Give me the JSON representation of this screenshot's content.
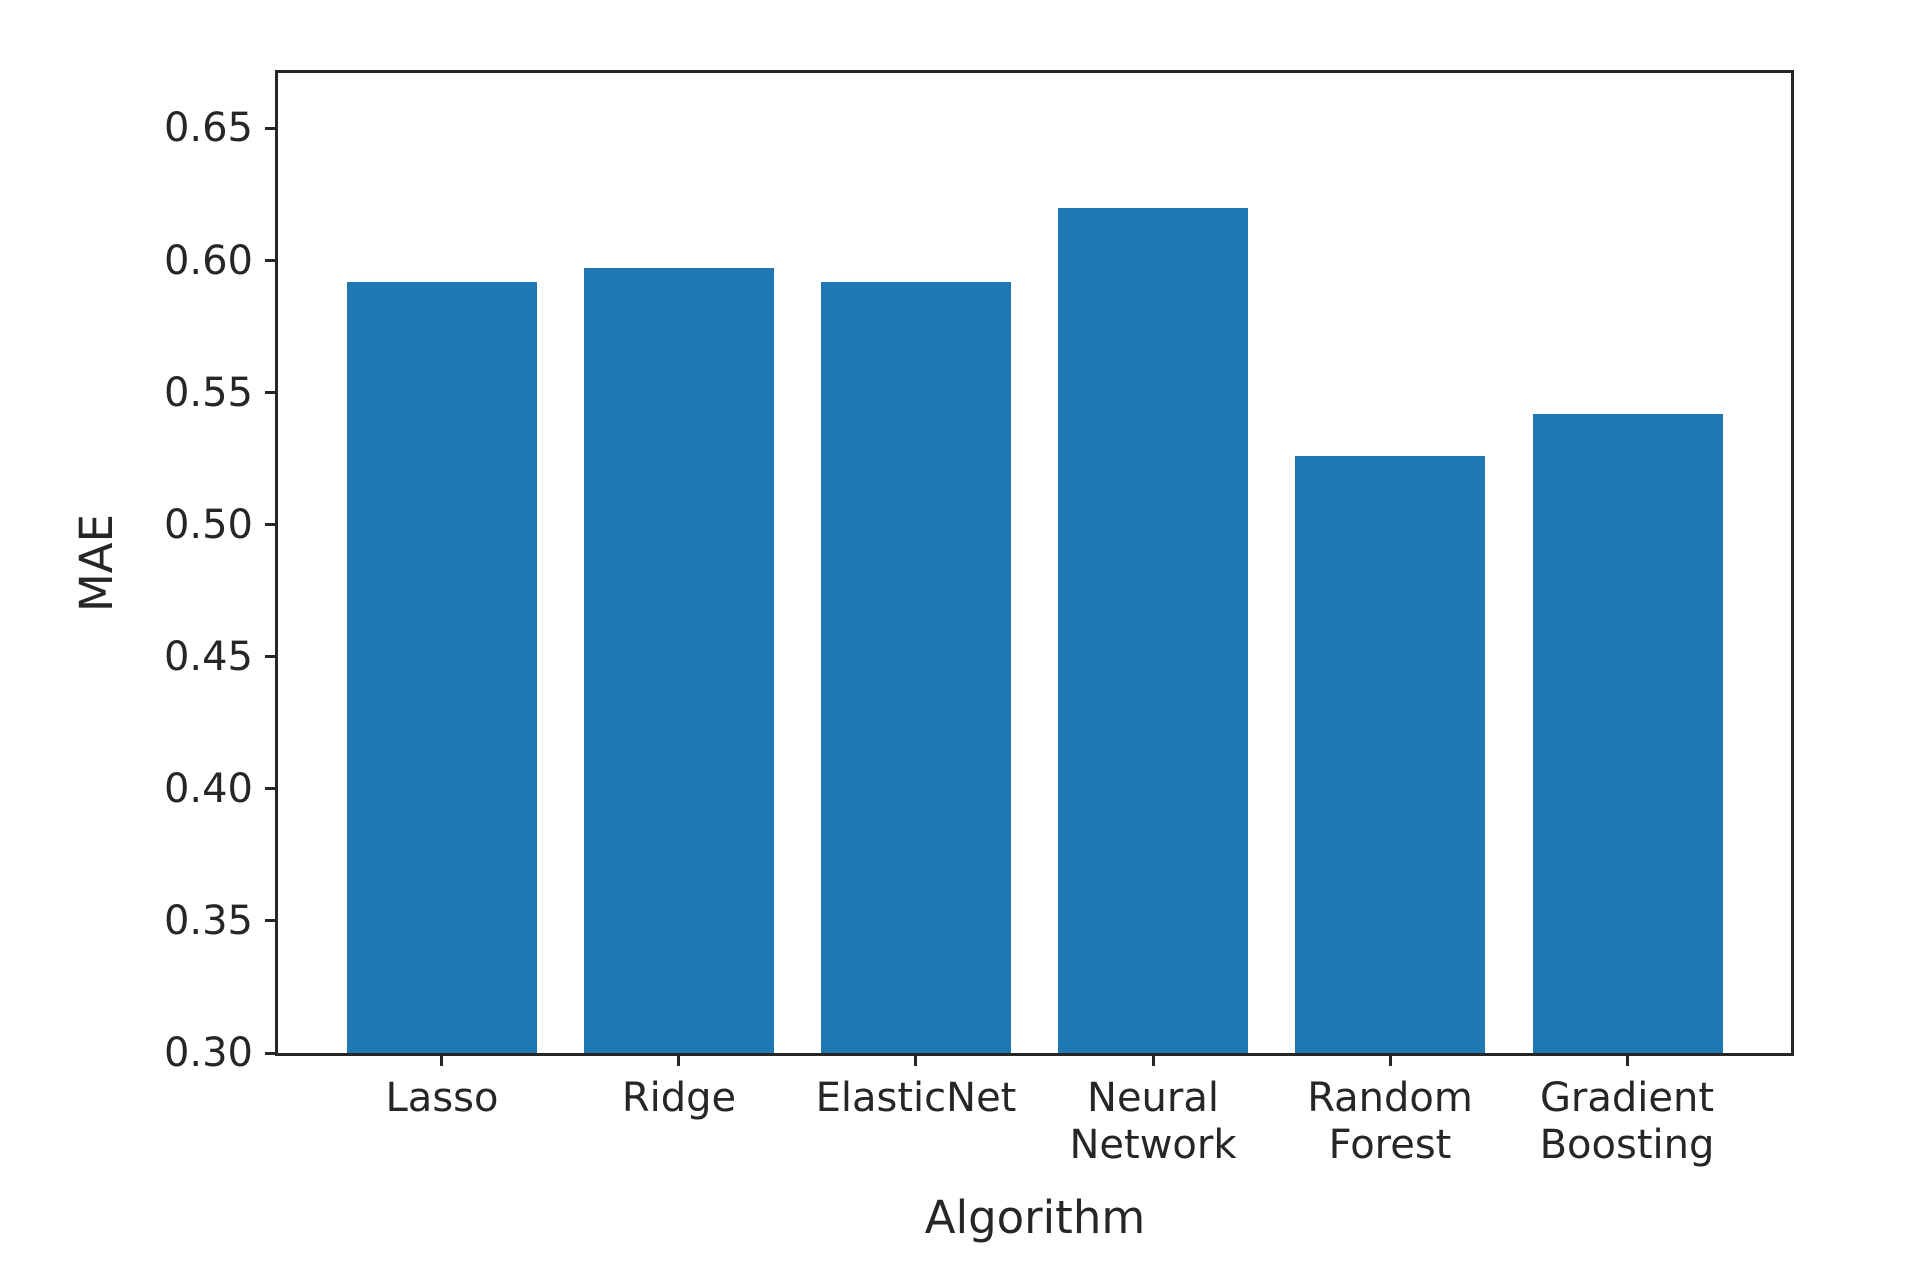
{
  "chart_data": {
    "type": "bar",
    "title": "",
    "xlabel": "Algorithm",
    "ylabel": "MAE",
    "categories": [
      "Lasso",
      "Ridge",
      "ElasticNet",
      "Neural\nNetwork",
      "Random\nForest",
      "Gradient\nBoosting"
    ],
    "values": [
      0.592,
      0.597,
      0.592,
      0.62,
      0.526,
      0.542
    ],
    "bar_color": "#1f77b4",
    "axis_color": "#262626",
    "text_color": "#262626",
    "background_color": "#ffffff",
    "ylim": [
      0.3,
      0.671
    ],
    "xlim": [
      -0.69,
      5.69
    ],
    "yticks": [
      0.3,
      0.35,
      0.4,
      0.45,
      0.5,
      0.55,
      0.6,
      0.65
    ],
    "ytick_labels": [
      "0.30",
      "0.35",
      "0.40",
      "0.45",
      "0.50",
      "0.55",
      "0.60",
      "0.65"
    ],
    "bar_width": 0.8,
    "grid": false,
    "legend": null
  }
}
